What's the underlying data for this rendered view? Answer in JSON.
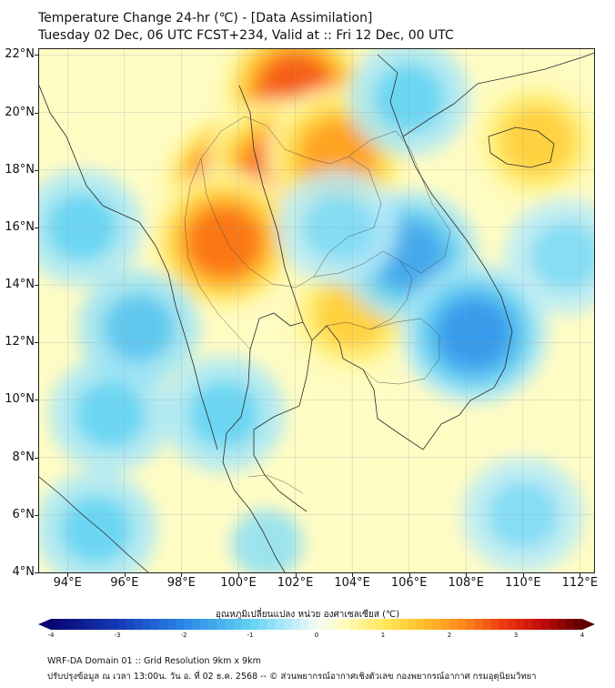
{
  "header": {
    "title_line1": "Temperature Change 24-hr (℃) - [Data Assimilation]",
    "title_line2": "Tuesday 02 Dec, 06 UTC FCST+234, Valid at :: Fri 12 Dec, 00 UTC"
  },
  "map": {
    "lat_labels": [
      "22°N",
      "20°N",
      "18°N",
      "16°N",
      "14°N",
      "12°N",
      "10°N",
      "8°N",
      "6°N",
      "4°N"
    ],
    "lon_labels": [
      "94°E",
      "96°E",
      "98°E",
      "100°E",
      "102°E",
      "104°E",
      "106°E",
      "108°E",
      "110°E",
      "112°E"
    ],
    "field": [
      {
        "lon": 100.0,
        "lat": 17.5,
        "dT": 3.0
      },
      {
        "lon": 102.0,
        "lat": 20.8,
        "dT": 2.6
      },
      {
        "lon": 101.5,
        "lat": 18.0,
        "dT": 2.5
      },
      {
        "lon": 99.5,
        "lat": 15.5,
        "dT": 2.4
      },
      {
        "lon": 103.5,
        "lat": 18.5,
        "dT": 2.0
      },
      {
        "lon": 104.0,
        "lat": 13.0,
        "dT": 1.4
      },
      {
        "lon": 110.5,
        "lat": 19.0,
        "dT": 1.4
      },
      {
        "lon": 106.0,
        "lat": 15.0,
        "dT": -1.6
      },
      {
        "lon": 108.3,
        "lat": 12.3,
        "dT": -1.8
      },
      {
        "lon": 103.5,
        "lat": 16.0,
        "dT": -0.8
      },
      {
        "lon": 106.0,
        "lat": 20.5,
        "dT": -1.0
      },
      {
        "lon": 99.5,
        "lat": 9.5,
        "dT": -1.0
      },
      {
        "lon": 94.5,
        "lat": 16.0,
        "dT": -1.0
      },
      {
        "lon": 95.5,
        "lat": 9.5,
        "dT": -1.0
      },
      {
        "lon": 95.0,
        "lat": 5.5,
        "dT": -1.0
      },
      {
        "lon": 110.0,
        "lat": 6.0,
        "dT": -0.8
      },
      {
        "lon": 111.5,
        "lat": 15.0,
        "dT": -0.8
      },
      {
        "lon": 96.5,
        "lat": 12.5,
        "dT": -1.2
      },
      {
        "lon": 101.0,
        "lat": 5.0,
        "dT": -0.7
      }
    ]
  },
  "colorbar": {
    "title": "อุณหภูมิเปลี่ยนแปลง หน่วย องศาเซลเซียส (℃)",
    "min": -4,
    "max": 4,
    "tick_labels": [
      "-4",
      "-3",
      "-2",
      "-1",
      "0",
      "1",
      "2",
      "3",
      "4"
    ]
  },
  "footer": {
    "line1": "WRF-DA Domain 01 :: Grid Resolution 9km x 9km",
    "line2": "ปรับปรุงข้อมูล ณ เวลา 13:00น. วัน อ. ที่ 02 ธ.ค. 2568 -- © ส่วนพยากรณ์อากาศเชิงตัวเลข กองพยากรณ์อากาศ กรมอุตุนิยมวิทยา"
  }
}
